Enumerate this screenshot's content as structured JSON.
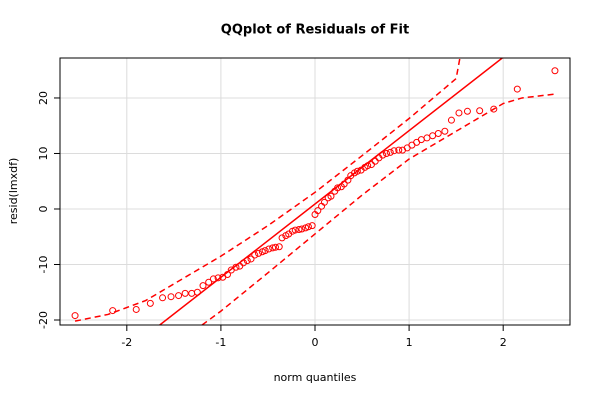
{
  "chart_data": {
    "type": "scatter",
    "title": "QQplot of Residuals of Fit",
    "x_label": "norm quantiles",
    "y_label": "resid(lmxdf)",
    "xlim": [
      -2.71,
      2.71
    ],
    "ylim": [
      -20.9,
      27.2
    ],
    "xticks": [
      -2,
      -1,
      0,
      1,
      2
    ],
    "yticks": [
      -20,
      -10,
      0,
      10,
      20
    ],
    "grid": true,
    "series": [
      {
        "color": "#ff0000",
        "style": "points",
        "x": [
          -2.55,
          -2.15,
          -1.9,
          -1.75,
          -1.62,
          -1.53,
          -1.45,
          -1.38,
          -1.31,
          -1.25,
          -1.19,
          -1.13,
          -1.08,
          -1.03,
          -0.98,
          -0.93,
          -0.89,
          -0.84,
          -0.8,
          -0.76,
          -0.72,
          -0.68,
          -0.64,
          -0.6,
          -0.56,
          -0.53,
          -0.49,
          -0.45,
          -0.42,
          -0.38,
          -0.35,
          -0.31,
          -0.28,
          -0.24,
          -0.21,
          -0.17,
          -0.14,
          -0.1,
          -0.07,
          -0.03,
          0,
          0.03,
          0.07,
          0.1,
          0.14,
          0.17,
          0.21,
          0.24,
          0.28,
          0.31,
          0.35,
          0.38,
          0.42,
          0.45,
          0.49,
          0.53,
          0.56,
          0.6,
          0.64,
          0.68,
          0.72,
          0.76,
          0.8,
          0.84,
          0.89,
          0.93,
          0.98,
          1.03,
          1.08,
          1.13,
          1.19,
          1.25,
          1.31,
          1.38,
          1.45,
          1.53,
          1.62,
          1.75,
          1.9,
          2.15,
          2.55
        ],
        "values": [
          -19.2,
          -18.3,
          -18.1,
          -17.0,
          -16.0,
          -15.8,
          -15.6,
          -15.2,
          -15.2,
          -15.0,
          -13.8,
          -13.2,
          -12.6,
          -12.4,
          -12.3,
          -11.8,
          -11.0,
          -10.5,
          -10.3,
          -9.7,
          -9.3,
          -9.0,
          -8.3,
          -8.0,
          -7.7,
          -7.5,
          -7.2,
          -7.0,
          -6.9,
          -6.8,
          -5.2,
          -4.8,
          -4.5,
          -4.0,
          -3.8,
          -3.7,
          -3.6,
          -3.4,
          -3.2,
          -3.0,
          -1.0,
          -0.3,
          0.5,
          1.2,
          2.0,
          2.3,
          3.2,
          3.8,
          4.0,
          4.5,
          5.2,
          6.0,
          6.5,
          6.8,
          7.0,
          7.5,
          7.8,
          8.0,
          8.6,
          9.2,
          9.7,
          10.0,
          10.2,
          10.5,
          10.6,
          10.6,
          11.0,
          11.5,
          12.0,
          12.5,
          12.8,
          13.2,
          13.6,
          14.0,
          16.0,
          17.3,
          17.6,
          17.7,
          18.0,
          21.6,
          24.9
        ]
      },
      {
        "color": "#ff0000",
        "style": "solid",
        "x": [
          -1.65,
          1.99
        ],
        "values": [
          -20.9,
          27.2
        ]
      },
      {
        "color": "#ff0000",
        "style": "dashed",
        "x": [
          -2.55,
          -2.2,
          -1.8,
          -1.4,
          -1,
          -0.5,
          0,
          0.5,
          1,
          1.5,
          1.54
        ],
        "values": [
          -20.2,
          -19,
          -16.5,
          -12.5,
          -8.5,
          -3.0,
          3.0,
          9.6,
          16.3,
          23.5,
          27.2
        ]
      },
      {
        "color": "#ff0000",
        "style": "dashed",
        "x": [
          -1.2,
          -1,
          -0.5,
          0,
          0.5,
          1,
          1.5,
          2,
          2.2,
          2.55
        ],
        "values": [
          -20.9,
          -18.4,
          -11.5,
          -4.5,
          2.5,
          9.0,
          14.0,
          19.0,
          20.0,
          20.7
        ]
      }
    ]
  }
}
